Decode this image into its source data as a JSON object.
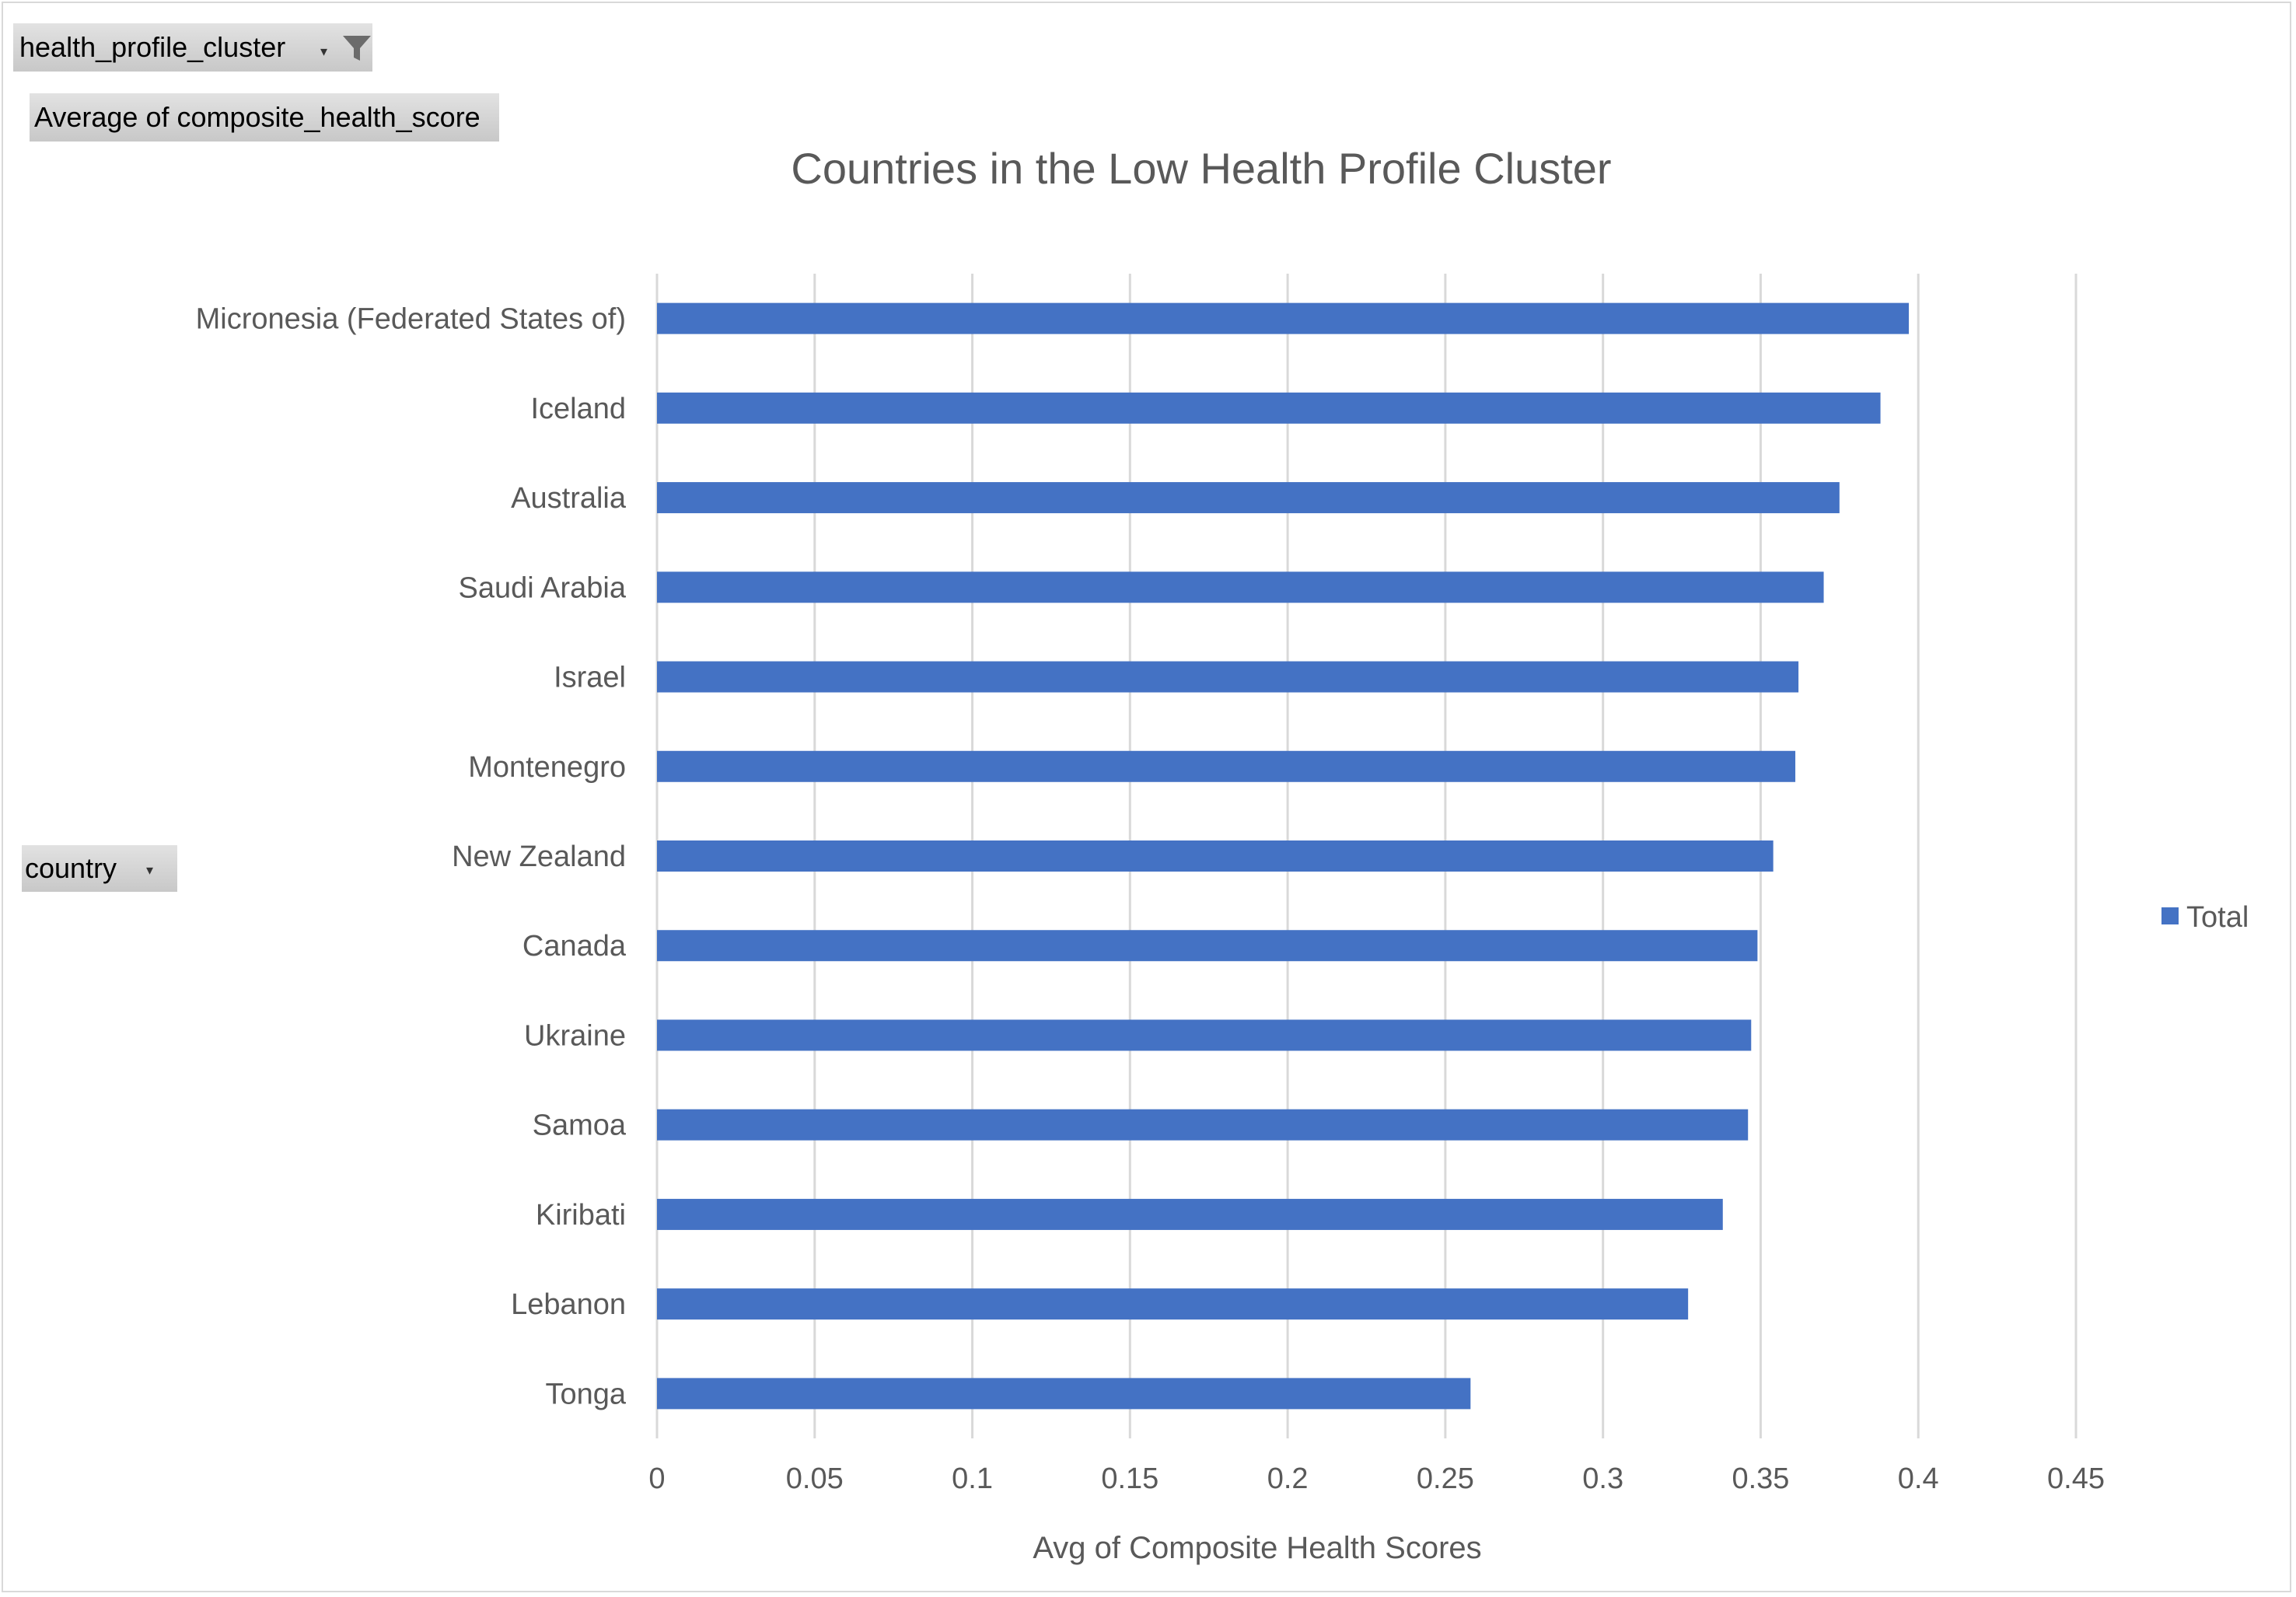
{
  "pivot": {
    "filter_field": "health_profile_cluster",
    "values_field": "Average  of composite_health_score",
    "axis_field": "country"
  },
  "colors": {
    "bar": "#4472C4",
    "grid": "#d9d9d9",
    "text": "#595959",
    "title": "#595959"
  },
  "chart_data": {
    "type": "bar",
    "orientation": "horizontal",
    "title": "Countries in the Low Health Profile Cluster",
    "xlabel": "Avg of Composite Health Scores",
    "ylabel": "",
    "xlim": [
      0,
      0.45
    ],
    "xticks": [
      "0",
      "0.05",
      "0.1",
      "0.15",
      "0.2",
      "0.25",
      "0.3",
      "0.35",
      "0.4",
      "0.45"
    ],
    "grid": true,
    "legend": {
      "position": "right",
      "entries": [
        "Total"
      ]
    },
    "categories": [
      "Micronesia (Federated States of)",
      "Iceland",
      "Australia",
      "Saudi Arabia",
      "Israel",
      "Montenegro",
      "New Zealand",
      "Canada",
      "Ukraine",
      "Samoa",
      "Kiribati",
      "Lebanon",
      "Tonga"
    ],
    "series": [
      {
        "name": "Total",
        "values": [
          0.397,
          0.388,
          0.375,
          0.37,
          0.362,
          0.361,
          0.354,
          0.349,
          0.347,
          0.346,
          0.338,
          0.327,
          0.258
        ]
      }
    ]
  }
}
